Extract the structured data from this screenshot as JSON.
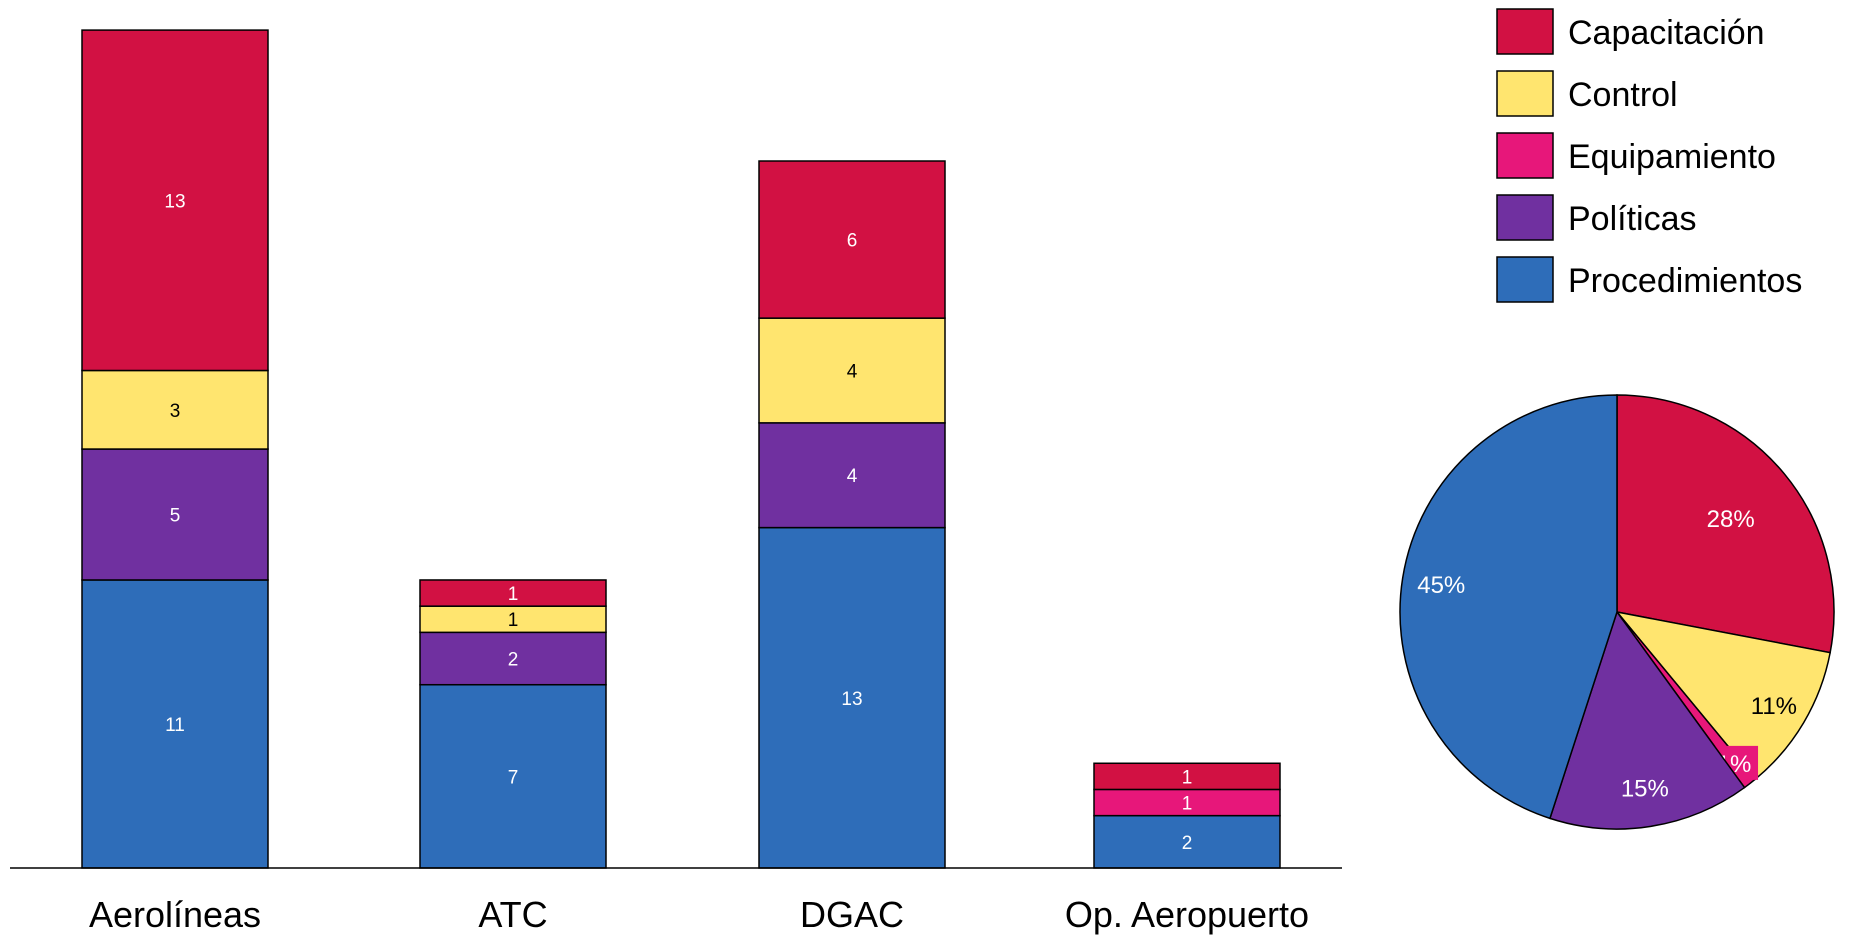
{
  "chart_data": [
    {
      "type": "bar",
      "stacked": true,
      "categories": [
        "Aerolíneas",
        "ATC",
        "DGAC",
        "Op. Aeropuerto"
      ],
      "series": [
        {
          "name": "Procedimientos",
          "color": "#2E6DB9",
          "values": [
            11,
            7,
            13,
            2
          ]
        },
        {
          "name": "Políticas",
          "color": "#7030A0",
          "values": [
            5,
            2,
            4,
            0
          ]
        },
        {
          "name": "Equipamiento",
          "color": "#E7177A",
          "values": [
            0,
            0,
            0,
            1
          ]
        },
        {
          "name": "Control",
          "color": "#FFE56F",
          "values": [
            3,
            1,
            4,
            0
          ]
        },
        {
          "name": "Capacitación",
          "color": "#D21143",
          "values": [
            13,
            1,
            6,
            1
          ]
        }
      ],
      "ylim": [
        0,
        32.5
      ],
      "grid": false,
      "legend": "top-right"
    },
    {
      "type": "pie",
      "slices": [
        {
          "name": "Capacitación",
          "value": 28,
          "label": "28%",
          "color": "#D21143"
        },
        {
          "name": "Control",
          "value": 11,
          "label": "11%",
          "color": "#FFE56F"
        },
        {
          "name": "Equipamiento",
          "value": 1,
          "label": "1%",
          "color": "#E7177A"
        },
        {
          "name": "Políticas",
          "value": 15,
          "label": "15%",
          "color": "#7030A0"
        },
        {
          "name": "Procedimientos",
          "value": 45,
          "label": "45%",
          "color": "#2E6DB9"
        }
      ]
    }
  ],
  "legend": {
    "items": [
      {
        "label": "Capacitación",
        "color": "#D21143"
      },
      {
        "label": "Control",
        "color": "#FFE56F"
      },
      {
        "label": "Equipamiento",
        "color": "#E7177A"
      },
      {
        "label": "Políticas",
        "color": "#7030A0"
      },
      {
        "label": "Procedimientos",
        "color": "#2E6DB9"
      }
    ]
  }
}
